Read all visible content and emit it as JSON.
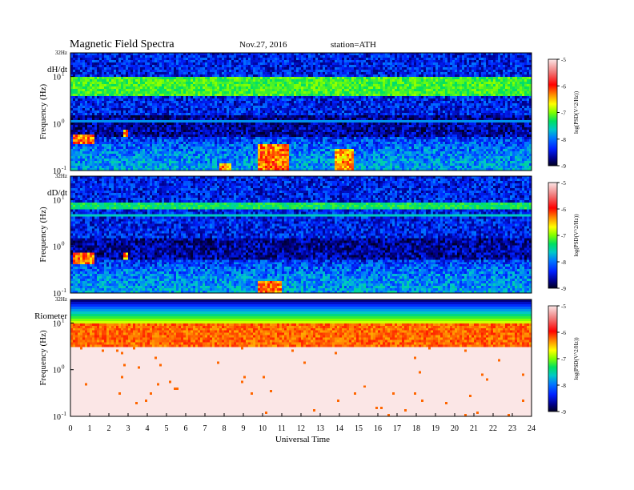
{
  "header": {
    "title": "Magnetic  Field  Spectra",
    "date": "Nov.27, 2016",
    "station": "station=ATH"
  },
  "colorbar": {
    "label": "log(PSD(V^2/Hz))",
    "ticks": [
      "-5",
      "-6",
      "-7",
      "-8",
      "-9"
    ],
    "colors": [
      "#fbe6e6",
      "#f07a7a",
      "#ff0000",
      "#ff8800",
      "#ffff00",
      "#7fff00",
      "#00e060",
      "#00c8c8",
      "#0078ff",
      "#0020ff",
      "#00008c",
      "#000020"
    ]
  },
  "y_ticks": {
    "top": "32Hz",
    "t1": "10",
    "t1_exp": "1",
    "t0": "10",
    "t0_exp": "0",
    "tm1": "10",
    "tm1_exp": "-1"
  },
  "x_axis": {
    "label": "Universal Time",
    "ticks": [
      "0",
      "1",
      "2",
      "3",
      "4",
      "5",
      "6",
      "7",
      "8",
      "9",
      "10",
      "11",
      "12",
      "13",
      "14",
      "15",
      "16",
      "17",
      "18",
      "19",
      "20",
      "21",
      "22",
      "23",
      "24"
    ]
  },
  "chart_data": [
    {
      "type": "heatmap",
      "title": "dH/dt",
      "xlabel": "Universal Time",
      "ylabel": "Frequency  (Hz)",
      "x_range": [
        0,
        24
      ],
      "y_range": [
        0.1,
        32
      ],
      "y_scale": "log",
      "colorbar_label": "log(PSD(V^2/Hz))",
      "colorbar_range": [
        -9,
        -5
      ],
      "features": [
        {
          "kind": "narrowband line",
          "freq_hz": 32,
          "level": -8.5
        },
        {
          "kind": "band",
          "freq_hz": [
            4,
            10
          ],
          "level": -7,
          "t": [
            0,
            24
          ]
        },
        {
          "kind": "narrowband line",
          "freq_hz": 1.1,
          "level": -7.8
        },
        {
          "kind": "burst",
          "t": [
            0.1,
            1.3
          ],
          "freq_hz": [
            0.35,
            0.6
          ],
          "level": -6
        },
        {
          "kind": "burst",
          "t": [
            2.7,
            2.95
          ],
          "freq_hz": [
            0.5,
            0.7
          ],
          "level": -6.2
        },
        {
          "kind": "burst",
          "t": [
            7.8,
            8.4
          ],
          "freq_hz": [
            0.1,
            0.15
          ],
          "level": -6.2
        },
        {
          "kind": "burst",
          "t": [
            9.8,
            11.4
          ],
          "freq_hz": [
            0.1,
            0.35
          ],
          "level": -6
        },
        {
          "kind": "burst",
          "t": [
            13.8,
            14.8
          ],
          "freq_hz": [
            0.1,
            0.3
          ],
          "level": -6.2
        }
      ]
    },
    {
      "type": "heatmap",
      "title": "dD/dt",
      "xlabel": "Universal Time",
      "ylabel": "Frequency  (Hz)",
      "x_range": [
        0,
        24
      ],
      "y_range": [
        0.1,
        32
      ],
      "y_scale": "log",
      "colorbar_label": "log(PSD(V^2/Hz))",
      "colorbar_range": [
        -9,
        -5
      ],
      "features": [
        {
          "kind": "narrowband line",
          "freq_hz": 32,
          "level": -8.5
        },
        {
          "kind": "band",
          "freq_hz": [
            6,
            9
          ],
          "level": -7.2,
          "t": [
            0,
            24
          ]
        },
        {
          "kind": "narrowband line",
          "freq_hz": 4.5,
          "level": -7.5
        },
        {
          "kind": "burst",
          "t": [
            0.1,
            1.3
          ],
          "freq_hz": [
            0.4,
            0.7
          ],
          "level": -6
        },
        {
          "kind": "burst",
          "t": [
            2.7,
            2.95
          ],
          "freq_hz": [
            0.55,
            0.75
          ],
          "level": -6.2
        },
        {
          "kind": "burst",
          "t": [
            9.8,
            11.0
          ],
          "freq_hz": [
            0.1,
            0.18
          ],
          "level": -6
        }
      ]
    },
    {
      "type": "heatmap",
      "title": "Riometer",
      "xlabel": "Universal Time",
      "ylabel": "Frequency  (Hz)",
      "x_range": [
        0,
        24
      ],
      "y_range": [
        0.1,
        32
      ],
      "y_scale": "log",
      "colorbar_label": "log(PSD(V^2/Hz))",
      "colorbar_range": [
        -9,
        -5
      ],
      "features": [
        {
          "kind": "gradient",
          "freq_hz": [
            10,
            32
          ],
          "level": [
            -6.5,
            -8.8
          ]
        },
        {
          "kind": "band",
          "freq_hz": [
            3,
            10
          ],
          "level": -6
        },
        {
          "kind": "background",
          "freq_hz": [
            0.1,
            3
          ],
          "level": -5
        }
      ]
    }
  ]
}
